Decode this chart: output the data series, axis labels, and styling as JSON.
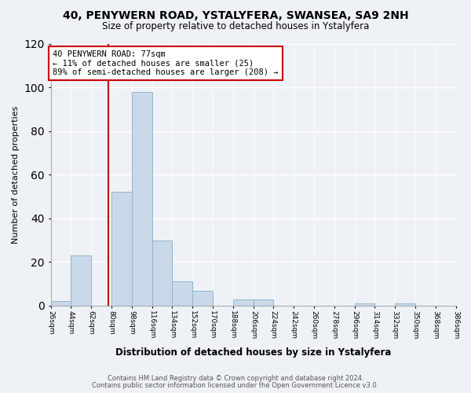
{
  "title": "40, PENYWERN ROAD, YSTALYFERA, SWANSEA, SA9 2NH",
  "subtitle": "Size of property relative to detached houses in Ystalyfera",
  "xlabel": "Distribution of detached houses by size in Ystalyfera",
  "ylabel": "Number of detached properties",
  "bar_edges": [
    26,
    44,
    62,
    80,
    98,
    116,
    134,
    152,
    170,
    188,
    206,
    224,
    242,
    260,
    278,
    296,
    314,
    332,
    350,
    368,
    386
  ],
  "bar_heights": [
    2,
    23,
    0,
    52,
    98,
    30,
    11,
    7,
    0,
    3,
    3,
    0,
    0,
    0,
    0,
    1,
    0,
    1,
    0,
    0
  ],
  "bar_color": "#c9d9ea",
  "bar_edge_color": "#92b4cc",
  "vline_x": 77,
  "vline_color": "#cc0000",
  "annotation_title": "40 PENYWERN ROAD: 77sqm",
  "annotation_line1": "← 11% of detached houses are smaller (25)",
  "annotation_line2": "89% of semi-detached houses are larger (208) →",
  "annotation_box_facecolor": "white",
  "annotation_box_edgecolor": "#cc0000",
  "ylim": [
    0,
    120
  ],
  "yticks": [
    0,
    20,
    40,
    60,
    80,
    100,
    120
  ],
  "tick_labels": [
    "26sqm",
    "44sqm",
    "62sqm",
    "80sqm",
    "98sqm",
    "116sqm",
    "134sqm",
    "152sqm",
    "170sqm",
    "188sqm",
    "206sqm",
    "224sqm",
    "242sqm",
    "260sqm",
    "278sqm",
    "296sqm",
    "314sqm",
    "332sqm",
    "350sqm",
    "368sqm",
    "386sqm"
  ],
  "footer1": "Contains HM Land Registry data © Crown copyright and database right 2024.",
  "footer2": "Contains public sector information licensed under the Open Government Licence v3.0.",
  "background_color": "#eef2f7",
  "grid_color": "#ffffff",
  "spine_color": "#aaaaaa"
}
